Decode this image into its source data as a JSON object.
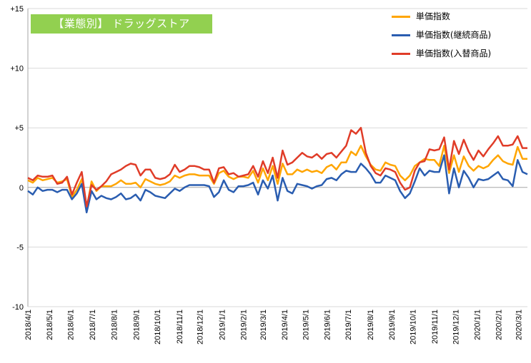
{
  "chart_data": {
    "type": "line",
    "title": "【業態別】 ドラッグストア",
    "ylim": [
      -10,
      15
    ],
    "y_ticks": [
      {
        "value": 15,
        "label": "+15"
      },
      {
        "value": 10,
        "label": "+10"
      },
      {
        "value": 5,
        "label": "+5"
      },
      {
        "value": 0,
        "label": "0"
      },
      {
        "value": -5,
        "label": "-5"
      },
      {
        "value": -10,
        "label": "-10"
      }
    ],
    "x_ticks": [
      {
        "index": 0,
        "label": "2018/4/1"
      },
      {
        "index": 4.4,
        "label": "2018/5/1"
      },
      {
        "index": 8.7,
        "label": "2018/6/1"
      },
      {
        "index": 13.1,
        "label": "2018/7/1"
      },
      {
        "index": 17.6,
        "label": "2018/8/1"
      },
      {
        "index": 22.1,
        "label": "2018/9/1"
      },
      {
        "index": 26.4,
        "label": "2018/10/1"
      },
      {
        "index": 30.9,
        "label": "2018/11/1"
      },
      {
        "index": 35.1,
        "label": "2018/12/1"
      },
      {
        "index": 39.6,
        "label": "2019/1/1"
      },
      {
        "index": 44.0,
        "label": "2019/2/1"
      },
      {
        "index": 48.0,
        "label": "2019/3/1"
      },
      {
        "index": 52.4,
        "label": "2019/4/1"
      },
      {
        "index": 56.7,
        "label": "2019/5/1"
      },
      {
        "index": 61.1,
        "label": "2019/6/1"
      },
      {
        "index": 65.4,
        "label": "2019/7/1"
      },
      {
        "index": 69.9,
        "label": "2019/8/1"
      },
      {
        "index": 74.3,
        "label": "2019/9/1"
      },
      {
        "index": 78.6,
        "label": "2019/10/1"
      },
      {
        "index": 83.0,
        "label": "2019/11/1"
      },
      {
        "index": 87.3,
        "label": "2019/12/1"
      },
      {
        "index": 91.7,
        "label": "2020/1/1"
      },
      {
        "index": 96.1,
        "label": "2020/2/1"
      },
      {
        "index": 100.2,
        "label": "2020/3/1"
      }
    ],
    "x_count": 103,
    "legend_position": "top-right",
    "series": [
      {
        "name": "単価指数",
        "color": "#ffa500",
        "values": [
          0.6,
          0.4,
          0.8,
          0.6,
          0.7,
          0.8,
          0.4,
          0.5,
          0.7,
          -0.8,
          -0.2,
          0.7,
          -1.8,
          0.5,
          -0.3,
          0.1,
          0.1,
          0.1,
          0.3,
          0.6,
          0.3,
          0.3,
          0.4,
          0,
          0.7,
          0.5,
          0.3,
          0.2,
          0.3,
          0.5,
          1,
          0.8,
          1,
          1.1,
          1.1,
          1,
          1,
          1,
          0.3,
          1.2,
          1.4,
          0.9,
          0.7,
          0.9,
          0.9,
          0.8,
          1.4,
          0.4,
          1.6,
          0.6,
          1.8,
          0.3,
          2.0,
          1.1,
          1.1,
          1.5,
          1.3,
          1.5,
          1.3,
          1.4,
          1.2,
          1.7,
          1.9,
          1.5,
          2.1,
          2.1,
          3.0,
          2.7,
          3.5,
          2.6,
          1.9,
          1.5,
          1.4,
          2.1,
          1.9,
          1.8,
          1.0,
          0.6,
          1.0,
          1.8,
          2.1,
          2.4,
          2.3,
          2.3,
          1.8,
          3.5,
          1.2,
          2.7,
          1.3,
          2.6,
          1.8,
          1.4,
          1.8,
          1.6,
          1.8,
          2.3,
          2.7,
          2.2,
          2.0,
          1.9,
          3.4,
          2.4,
          2.4
        ]
      },
      {
        "name": "単価指数(継続商品)",
        "color": "#2a5db0",
        "values": [
          -0.3,
          -0.6,
          0,
          -0.3,
          -0.2,
          -0.2,
          -0.4,
          -0.2,
          -0.2,
          -1.0,
          -0.5,
          0.3,
          -2.1,
          -0.3,
          -1.0,
          -0.7,
          -0.9,
          -1.0,
          -0.8,
          -0.5,
          -1.0,
          -0.9,
          -0.6,
          -1.1,
          -0.2,
          -0.4,
          -0.7,
          -0.8,
          -0.9,
          -0.5,
          -0.1,
          -0.3,
          0,
          0.2,
          0.2,
          0.2,
          0.2,
          0.1,
          -0.8,
          -0.4,
          0.6,
          -0.2,
          -0.4,
          0.1,
          0.1,
          0.2,
          0.4,
          -0.6,
          0.6,
          -0.1,
          1.0,
          -1.1,
          0.8,
          -0.3,
          -0.5,
          0.3,
          0.2,
          0.1,
          -0.1,
          0.1,
          0.2,
          0.7,
          0.8,
          0.6,
          1.1,
          1.4,
          1.3,
          1.3,
          2.0,
          1.6,
          1.1,
          0.4,
          0.4,
          1.0,
          0.8,
          0.6,
          -0.3,
          -0.9,
          -0.5,
          0.5,
          1.6,
          1.0,
          1.4,
          1.3,
          1.3,
          2.7,
          -0.5,
          1.6,
          0,
          1.4,
          0.8,
          0,
          0.7,
          0.6,
          0.7,
          1.0,
          1.3,
          0.7,
          0.6,
          0.1,
          2.3,
          1.3,
          1.1
        ]
      },
      {
        "name": "単価指数(入替商品)",
        "color": "#e03c28",
        "values": [
          0.8,
          0.6,
          1,
          0.9,
          0.9,
          1,
          0.3,
          0.4,
          0.9,
          -0.6,
          0.4,
          1.3,
          -1.6,
          0.2,
          -0.2,
          0.1,
          0.5,
          1.1,
          1.3,
          1.5,
          1.8,
          2.0,
          1.9,
          1.0,
          1.5,
          1.5,
          0.8,
          0.7,
          0.8,
          1.1,
          1.9,
          1.3,
          1.5,
          1.8,
          1.8,
          1.7,
          1.5,
          1.5,
          0.4,
          1.6,
          1.7,
          1.1,
          1.2,
          0.9,
          1.0,
          1.1,
          1.8,
          0.9,
          2.2,
          1.2,
          2.5,
          0.8,
          3.1,
          1.9,
          2.1,
          2.5,
          2.9,
          2.6,
          2.5,
          2.8,
          2.4,
          2.8,
          2.9,
          2.5,
          3.0,
          3.5,
          4.8,
          4.5,
          5.0,
          2.9,
          1.8,
          1.2,
          1.0,
          1.6,
          1.5,
          1.3,
          0.4,
          -0.2,
          0,
          1.4,
          2.1,
          2.2,
          3.2,
          3.1,
          3.2,
          4.2,
          1.5,
          3.9,
          2.8,
          4.0,
          3.0,
          2.3,
          3.1,
          2.6,
          3.2,
          3.7,
          4.3,
          3.5,
          3.5,
          3.6,
          4.3,
          3.3,
          3.3
        ]
      }
    ]
  }
}
